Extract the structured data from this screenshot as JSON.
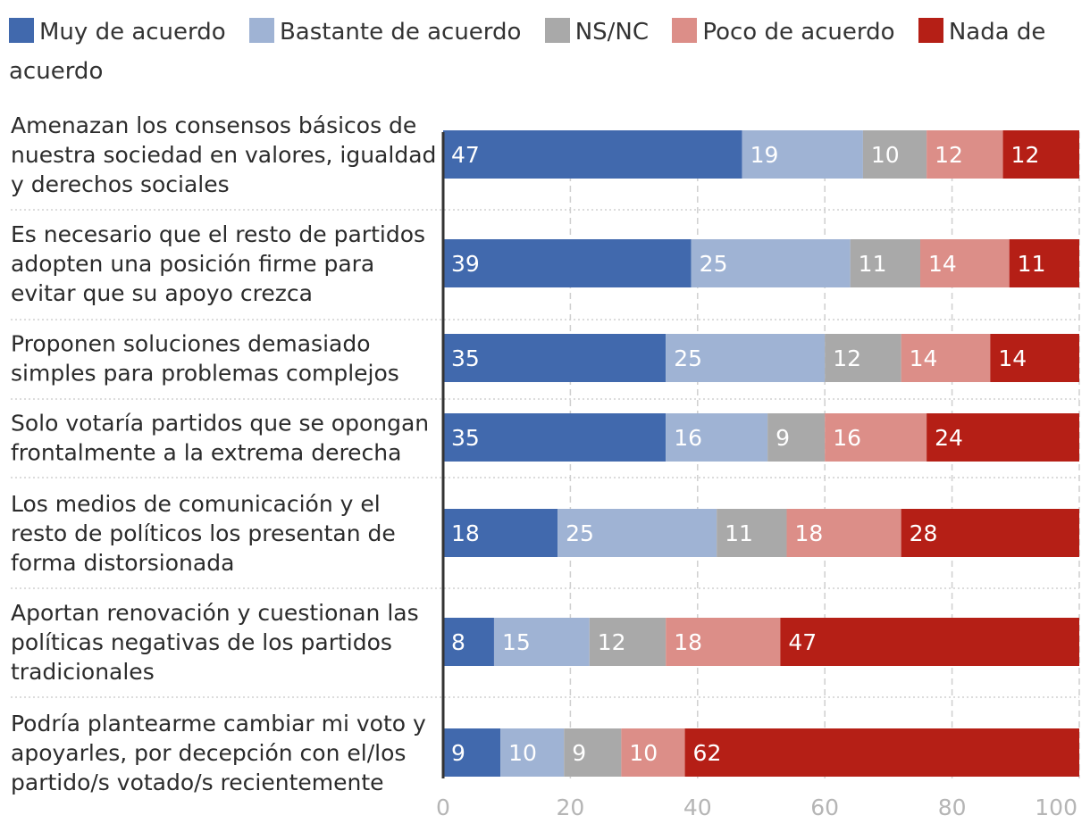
{
  "chart_data": {
    "type": "bar",
    "orientation": "horizontal",
    "stacked": true,
    "title": "",
    "xlabel": "",
    "ylabel": "",
    "xlim": [
      0,
      100
    ],
    "xticks": [
      "0",
      "20",
      "40",
      "60",
      "80",
      "100"
    ],
    "legend_position": "top",
    "categories": [
      "Amenazan los consensos básicos de nuestra sociedad en valores, igualdad y derechos sociales",
      "Es necesario que el resto de partidos adopten una posición firme para evitar que su apoyo crezca",
      "Proponen soluciones demasiado simples para problemas complejos",
      "Solo votaría partidos que se opongan frontalmente a la extrema derecha",
      "Los medios de comunicación y el resto de políticos los presentan de forma distorsionada",
      "Aportan renovación y cuestionan las políticas negativas de los partidos tradicionales",
      "Podría plantearme cambiar mi voto y apoyarles, por decepción con el/los partido/s votado/s recientemente"
    ],
    "category_lines": [
      [
        "Amenazan los consensos básicos de",
        "nuestra sociedad en valores, igualdad",
        "y derechos sociales"
      ],
      [
        "Es necesario que el resto de partidos",
        "adopten una posición firme para",
        "evitar que su apoyo crezca"
      ],
      [
        "Proponen soluciones demasiado",
        "simples para problemas complejos"
      ],
      [
        "Solo votaría partidos que se opongan",
        "frontalmente a la extrema derecha"
      ],
      [
        "Los medios de comunicación y el",
        "resto de políticos los presentan de",
        "forma distorsionada"
      ],
      [
        "Aportan renovación y cuestionan las",
        "políticas negativas de los partidos",
        "tradicionales"
      ],
      [
        "Podría plantearme cambiar mi voto y",
        "apoyarles, por decepción con el/los",
        "partido/s votado/s recientemente"
      ]
    ],
    "series": [
      {
        "name": "Muy de acuerdo",
        "color": "#4169ad",
        "label_color": "#ffffff",
        "values": [
          47,
          39,
          35,
          35,
          18,
          8,
          9
        ]
      },
      {
        "name": "Bastante de acuerdo",
        "color": "#9fb3d4",
        "label_color": "#3a3a3a",
        "values": [
          19,
          25,
          25,
          16,
          25,
          15,
          10
        ]
      },
      {
        "name": "NS/NC",
        "color": "#a9a9a9",
        "label_color": "#ffffff",
        "values": [
          10,
          11,
          12,
          9,
          11,
          12,
          9
        ]
      },
      {
        "name": "Poco de acuerdo",
        "color": "#dc8e88",
        "label_color": "#ffffff",
        "values": [
          12,
          14,
          14,
          16,
          18,
          18,
          10
        ]
      },
      {
        "name": "Nada de acuerdo",
        "color": "#b51f16",
        "label_color": "#ffffff",
        "values": [
          12,
          11,
          14,
          24,
          28,
          47,
          62
        ]
      }
    ]
  }
}
